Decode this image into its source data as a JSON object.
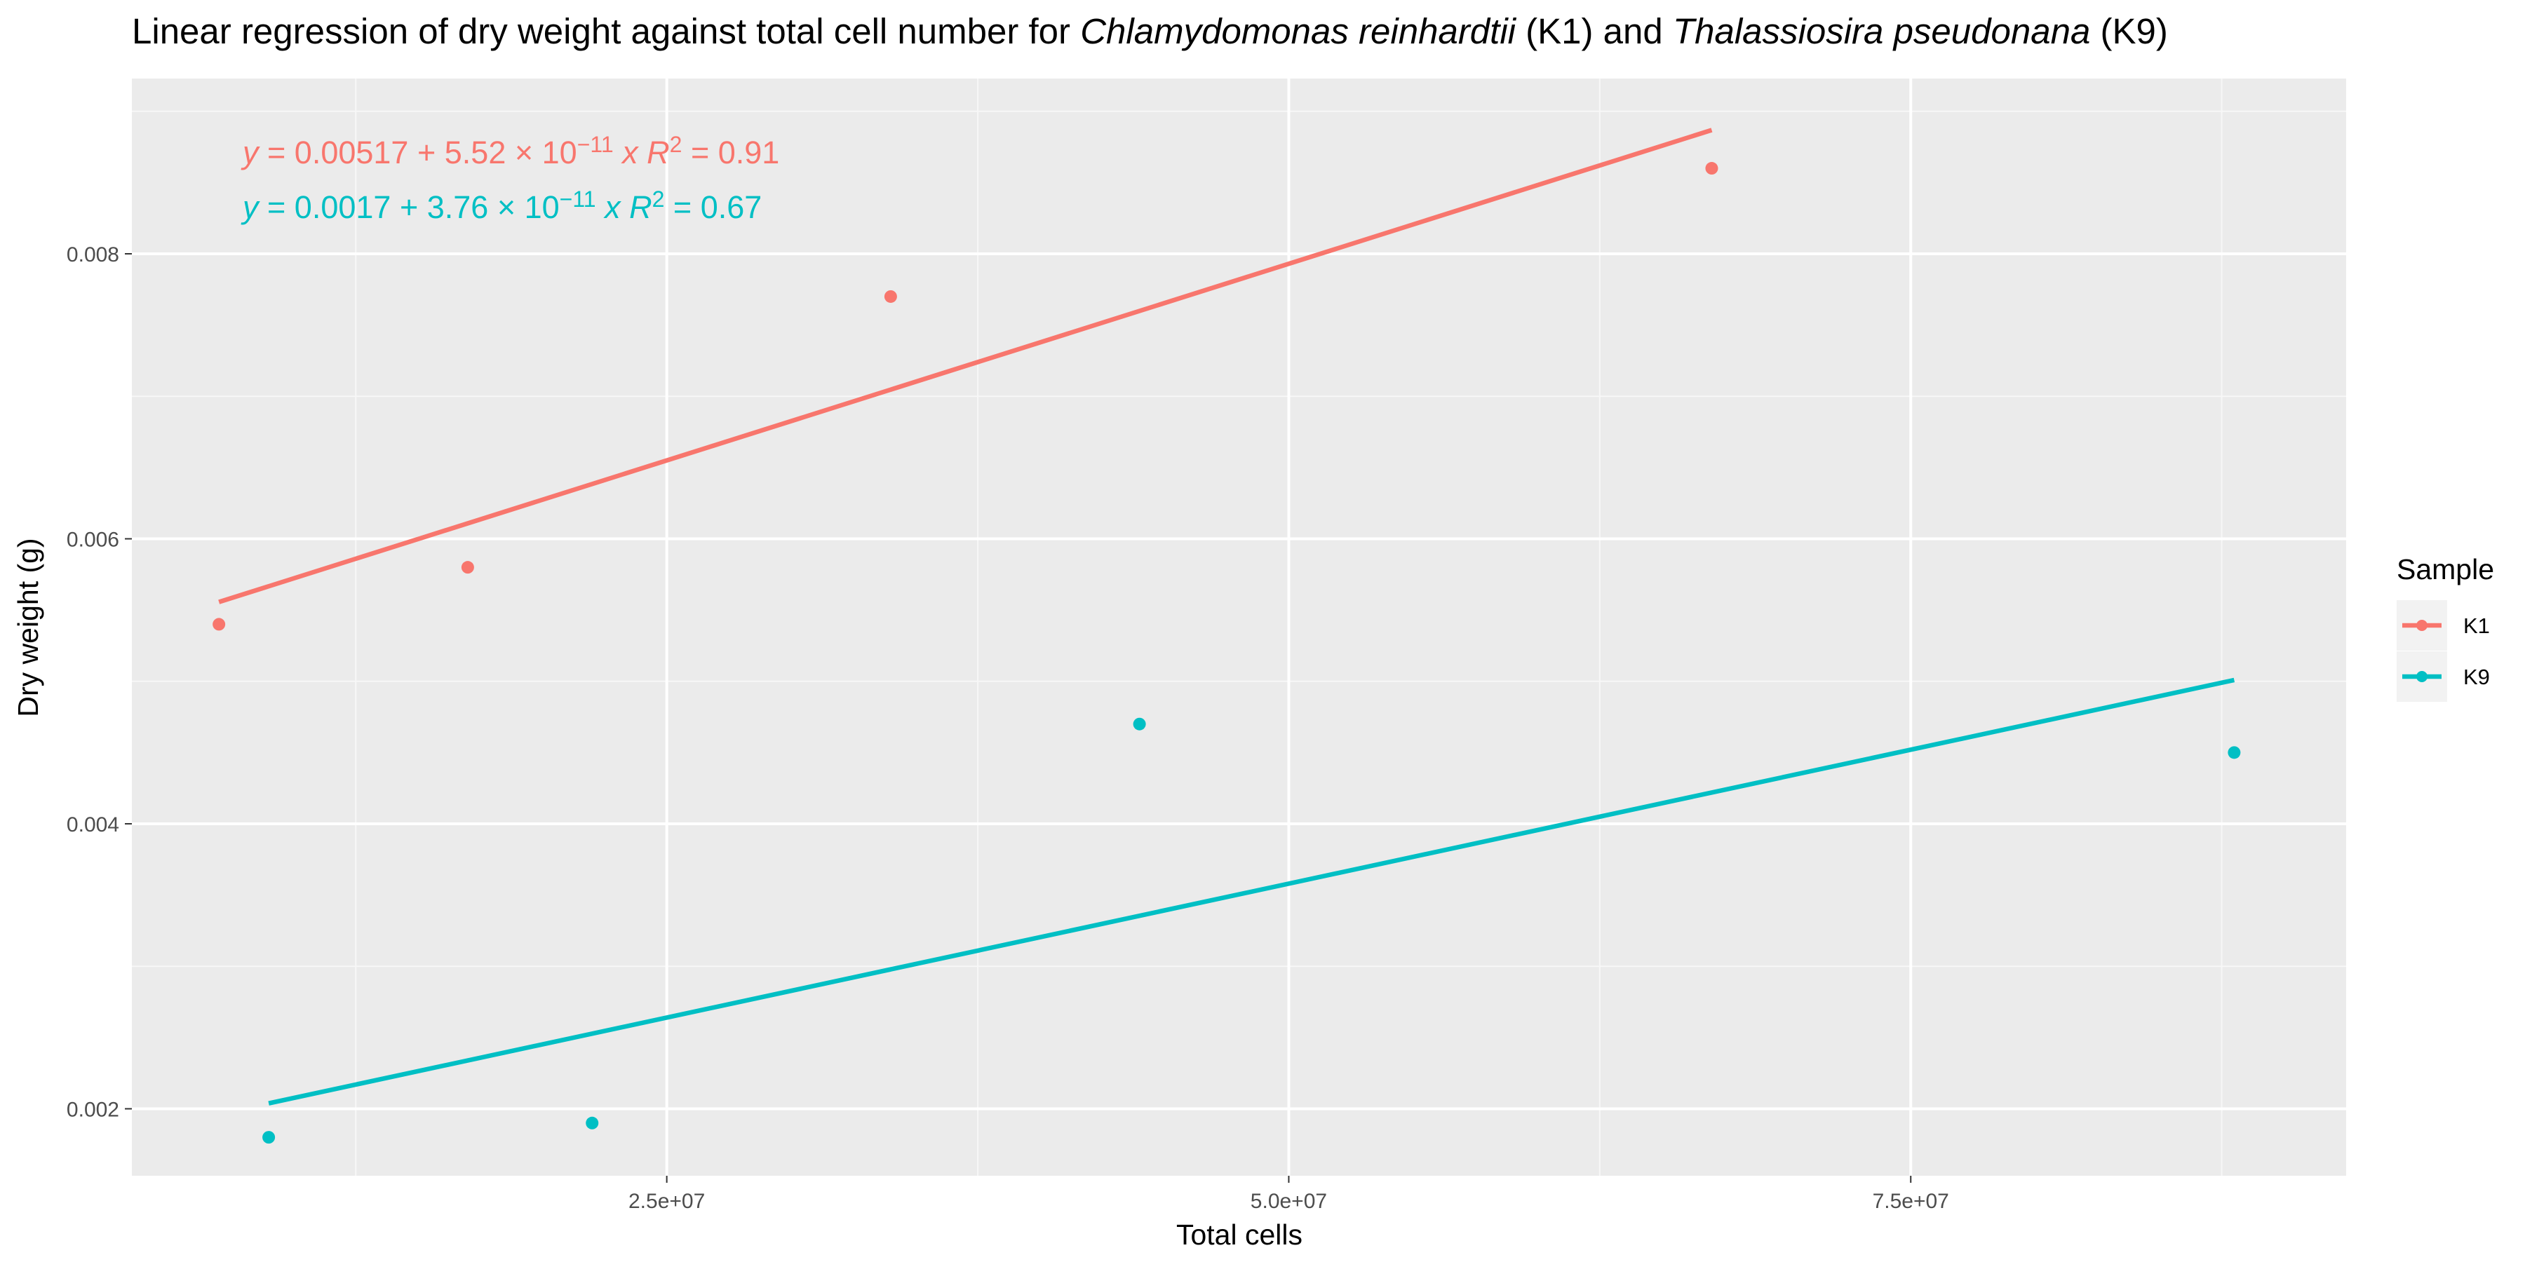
{
  "chart_data": {
    "type": "scatter",
    "title": {
      "prefix": "Linear regression of dry weight against total cell number for ",
      "species1": "Chlamydomonas reinhardtii",
      "mid": " (K1) and ",
      "species2": "Thalassiosira pseudonana",
      "suffix": " (K9)"
    },
    "xlabel": "Total cells",
    "ylabel": "Dry weight (g)",
    "xlim": [
      3500000,
      92500000
    ],
    "ylim": [
      1530,
      9230
    ],
    "y_unit_scale": 1000000,
    "x_ticks": [
      25000000,
      50000000,
      75000000
    ],
    "x_tick_labels": [
      "2.5e+07",
      "5.0e+07",
      "7.5e+07"
    ],
    "x_minor_ticks": [
      12500000,
      37500000,
      62500000,
      87500000
    ],
    "y_ticks": [
      2000,
      4000,
      6000,
      8000
    ],
    "y_tick_labels": [
      "0.002",
      "0.004",
      "0.006",
      "0.008"
    ],
    "y_minor_ticks": [
      3000,
      5000,
      7000,
      9000
    ],
    "legend": {
      "title": "Sample",
      "position": "right"
    },
    "series": [
      {
        "name": "K1",
        "color": "#F8766D",
        "points": [
          [
            7000000,
            5400
          ],
          [
            17000000,
            5800
          ],
          [
            34000000,
            7700
          ],
          [
            67000000,
            8600
          ]
        ],
        "fit": {
          "intercept": 5170,
          "slope_per_1e7": 552,
          "x_range": [
            7000000,
            67000000
          ]
        },
        "equation": {
          "intercept": "0.00517",
          "coef": "5.52",
          "exp": "−11",
          "r2": "0.91"
        }
      },
      {
        "name": "K9",
        "color": "#00BFC4",
        "points": [
          [
            9000000,
            1800
          ],
          [
            22000000,
            1900
          ],
          [
            44000000,
            4700
          ],
          [
            88000000,
            4500
          ]
        ],
        "fit": {
          "intercept": 1700,
          "slope_per_1e7": 376,
          "x_range": [
            9000000,
            88000000
          ]
        },
        "equation": {
          "intercept": "0.0017",
          "coef": "3.76",
          "exp": "−11",
          "r2": "0.67"
        }
      }
    ],
    "equation_text": {
      "y": "y",
      "eq": " = ",
      "plus": " + ",
      "times": " × 10",
      "x": "x",
      "r": "R",
      "r_exp": "2"
    }
  }
}
